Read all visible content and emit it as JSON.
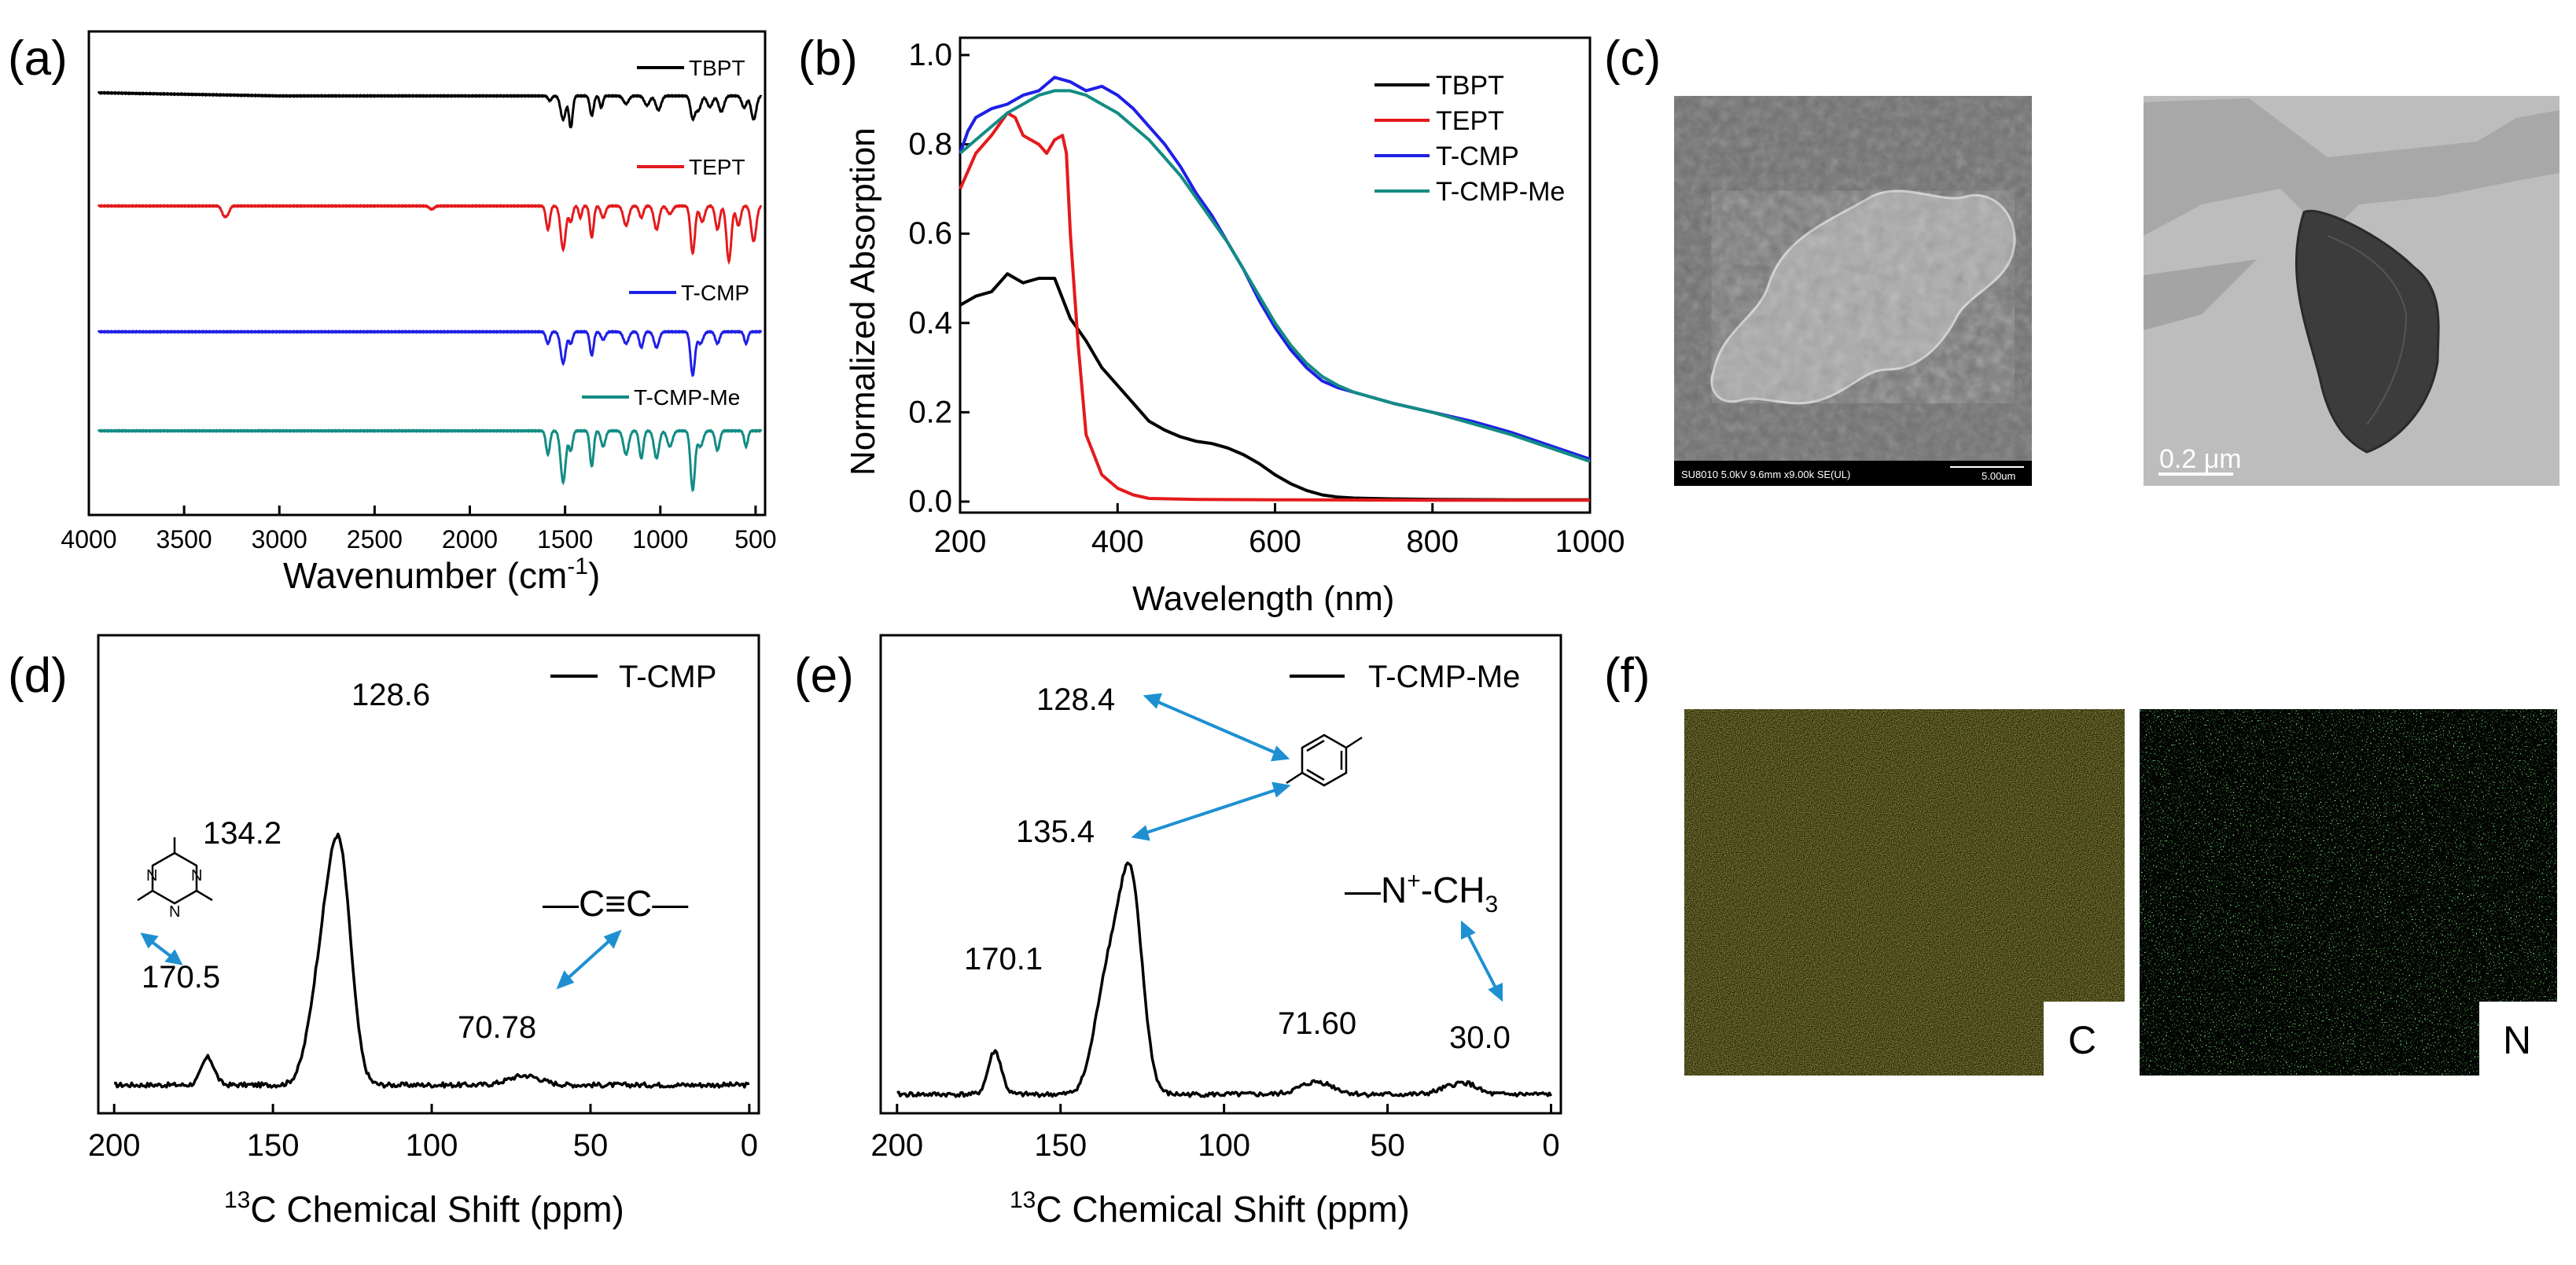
{
  "panel_labels": {
    "a": "(a)",
    "b": "(b)",
    "c": "(c)",
    "d": "(d)",
    "e": "(e)",
    "f": "(f)"
  },
  "colors": {
    "black": "#000000",
    "red": "#e41a1c",
    "blue": "#1f1fe6",
    "teal": "#138c84",
    "sem_bg": "#6e6e6e",
    "tem_bg": "#b9b9b9",
    "eds_c": "#d8cf1e",
    "eds_n": "#2fd42f",
    "arrow": "#1e90d2"
  },
  "chart_data": [
    {
      "panel": "a",
      "type": "line",
      "title": "",
      "xlabel_main": "Wavenumber (cm",
      "xlabel_sup": "-1",
      "xlabel_tail": ")",
      "xlim": [
        4000,
        450
      ],
      "xticks": [
        "4000",
        "3500",
        "3000",
        "2500",
        "2000",
        "1500",
        "1000",
        "500"
      ],
      "ylabel": "",
      "series": [
        {
          "name": "TBPT",
          "color": "black",
          "baseline": 0,
          "peaks": [
            [
              1580,
              6
            ],
            [
              1510,
              30
            ],
            [
              1470,
              40
            ],
            [
              1360,
              25
            ],
            [
              1310,
              15
            ],
            [
              1180,
              10
            ],
            [
              1070,
              12
            ],
            [
              1010,
              18
            ],
            [
              830,
              28
            ],
            [
              800,
              18
            ],
            [
              740,
              14
            ],
            [
              680,
              20
            ],
            [
              560,
              15
            ],
            [
              510,
              30
            ]
          ]
        },
        {
          "name": "TEPT",
          "color": "red",
          "baseline": 0,
          "peaks": [
            [
              3290,
              12
            ],
            [
              3270,
              8
            ],
            [
              2200,
              4
            ],
            [
              1590,
              30
            ],
            [
              1510,
              55
            ],
            [
              1470,
              20
            ],
            [
              1420,
              15
            ],
            [
              1360,
              40
            ],
            [
              1300,
              15
            ],
            [
              1180,
              25
            ],
            [
              1100,
              15
            ],
            [
              1020,
              30
            ],
            [
              950,
              10
            ],
            [
              830,
              60
            ],
            [
              780,
              20
            ],
            [
              700,
              30
            ],
            [
              640,
              70
            ],
            [
              590,
              25
            ],
            [
              510,
              45
            ]
          ]
        },
        {
          "name": "T-CMP",
          "color": "blue",
          "baseline": 0,
          "peaks": [
            [
              1590,
              15
            ],
            [
              1510,
              40
            ],
            [
              1470,
              15
            ],
            [
              1360,
              30
            ],
            [
              1300,
              10
            ],
            [
              1180,
              15
            ],
            [
              1100,
              20
            ],
            [
              1020,
              20
            ],
            [
              830,
              55
            ],
            [
              790,
              15
            ],
            [
              700,
              15
            ],
            [
              550,
              15
            ]
          ]
        },
        {
          "name": "T-CMP-Me",
          "color": "teal",
          "baseline": 0,
          "peaks": [
            [
              1590,
              30
            ],
            [
              1510,
              65
            ],
            [
              1470,
              25
            ],
            [
              1360,
              45
            ],
            [
              1300,
              20
            ],
            [
              1180,
              30
            ],
            [
              1100,
              35
            ],
            [
              1020,
              35
            ],
            [
              950,
              20
            ],
            [
              830,
              75
            ],
            [
              790,
              20
            ],
            [
              700,
              25
            ],
            [
              550,
              20
            ]
          ]
        }
      ]
    },
    {
      "panel": "b",
      "type": "line",
      "title": "",
      "xlabel": "Wavelength (nm)",
      "ylabel": "Normalized Absorption",
      "xlim": [
        200,
        1000
      ],
      "ylim": [
        0.0,
        1.0
      ],
      "xticks": [
        "200",
        "400",
        "600",
        "800",
        "1000"
      ],
      "yticks": [
        "0.0",
        "0.2",
        "0.4",
        "0.6",
        "0.8",
        "1.0"
      ],
      "series": [
        {
          "name": "TBPT",
          "color": "black",
          "x": [
            200,
            220,
            240,
            260,
            280,
            300,
            320,
            340,
            360,
            380,
            400,
            420,
            440,
            460,
            480,
            500,
            520,
            540,
            560,
            580,
            600,
            620,
            640,
            660,
            680,
            700,
            750,
            800,
            900,
            1000
          ],
          "y": [
            0.44,
            0.46,
            0.47,
            0.51,
            0.49,
            0.5,
            0.5,
            0.41,
            0.36,
            0.3,
            0.26,
            0.22,
            0.18,
            0.16,
            0.145,
            0.135,
            0.13,
            0.12,
            0.105,
            0.085,
            0.06,
            0.04,
            0.025,
            0.015,
            0.01,
            0.008,
            0.006,
            0.005,
            0.004,
            0.004
          ]
        },
        {
          "name": "TEPT",
          "color": "red",
          "x": [
            200,
            210,
            220,
            240,
            260,
            270,
            280,
            300,
            310,
            320,
            330,
            335,
            340,
            350,
            360,
            380,
            400,
            420,
            440,
            500,
            600,
            800,
            1000
          ],
          "y": [
            0.7,
            0.74,
            0.78,
            0.82,
            0.87,
            0.86,
            0.82,
            0.8,
            0.78,
            0.81,
            0.82,
            0.78,
            0.6,
            0.35,
            0.15,
            0.06,
            0.03,
            0.015,
            0.007,
            0.005,
            0.004,
            0.003,
            0.003
          ]
        },
        {
          "name": "T-CMP",
          "color": "blue",
          "x": [
            200,
            210,
            220,
            240,
            260,
            280,
            300,
            320,
            340,
            360,
            380,
            400,
            420,
            440,
            460,
            480,
            500,
            520,
            540,
            560,
            580,
            600,
            620,
            640,
            660,
            680,
            700,
            720,
            750,
            800,
            850,
            900,
            950,
            1000
          ],
          "y": [
            0.78,
            0.83,
            0.86,
            0.88,
            0.89,
            0.91,
            0.92,
            0.95,
            0.94,
            0.92,
            0.93,
            0.91,
            0.88,
            0.84,
            0.8,
            0.75,
            0.69,
            0.64,
            0.58,
            0.52,
            0.45,
            0.39,
            0.34,
            0.3,
            0.27,
            0.255,
            0.245,
            0.235,
            0.22,
            0.2,
            0.18,
            0.155,
            0.125,
            0.095
          ]
        },
        {
          "name": "T-CMP-Me",
          "color": "teal",
          "x": [
            200,
            220,
            240,
            260,
            280,
            300,
            320,
            340,
            360,
            380,
            400,
            420,
            440,
            460,
            480,
            500,
            520,
            540,
            560,
            580,
            600,
            620,
            640,
            660,
            680,
            700,
            720,
            750,
            800,
            850,
            900,
            950,
            1000
          ],
          "y": [
            0.78,
            0.81,
            0.84,
            0.87,
            0.89,
            0.91,
            0.92,
            0.92,
            0.91,
            0.89,
            0.87,
            0.84,
            0.81,
            0.77,
            0.73,
            0.68,
            0.63,
            0.58,
            0.52,
            0.46,
            0.4,
            0.35,
            0.31,
            0.28,
            0.26,
            0.245,
            0.235,
            0.22,
            0.2,
            0.175,
            0.15,
            0.12,
            0.09
          ]
        }
      ]
    },
    {
      "panel": "d",
      "type": "line",
      "title": "",
      "legend": "T-CMP",
      "xlabel_sup": "13",
      "xlabel_main": "C Chemical Shift (ppm)",
      "xlim": [
        205,
        -3
      ],
      "xticks": [
        "200",
        "150",
        "100",
        "50",
        "0"
      ],
      "peaks": [
        [
          170.5,
          35,
          2.0
        ],
        [
          134.2,
          150,
          4.0
        ],
        [
          128.6,
          250,
          3.5
        ],
        [
          70.78,
          12,
          5
        ]
      ],
      "annotations": [
        "128.6",
        "134.2",
        "170.5",
        "70.78"
      ],
      "triple_bond_label": "—C≡C—"
    },
    {
      "panel": "e",
      "type": "line",
      "title": "",
      "legend": "T-CMP-Me",
      "xlabel_sup": "13",
      "xlabel_main": "C Chemical Shift (ppm)",
      "xlim": [
        205,
        -3
      ],
      "xticks": [
        "200",
        "150",
        "100",
        "50",
        "0"
      ],
      "peaks": [
        [
          170.1,
          55,
          2.0
        ],
        [
          135.4,
          150,
          4.0
        ],
        [
          128.4,
          255,
          3.5
        ],
        [
          71.6,
          16,
          5
        ],
        [
          30.0,
          10,
          4
        ],
        [
          25,
          9,
          3
        ]
      ],
      "annotations": [
        "128.4",
        "135.4",
        "170.1",
        "71.60",
        "30.0"
      ],
      "methyl_label_main": "—N",
      "methyl_label_sup": "+",
      "methyl_label_tail": "-CH",
      "methyl_label_sub": "3"
    }
  ],
  "panel_c": {
    "sem_caption": "SU8010 5.0kV 9.6mm x9.00k SE(UL)",
    "sem_scale": "5.00um",
    "tem_scale": "0.2 μm"
  },
  "panel_f": {
    "c_label": "C",
    "n_label": "N"
  }
}
